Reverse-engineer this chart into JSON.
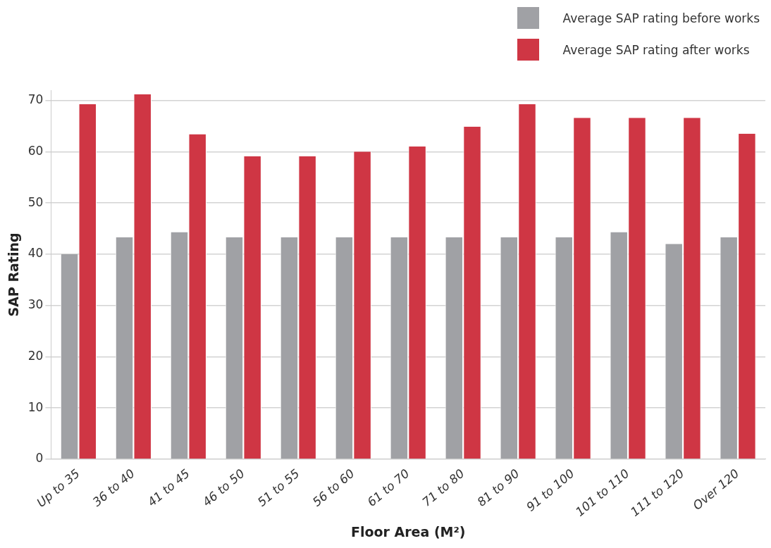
{
  "chart_data": {
    "type": "bar",
    "xlabel": "Floor Area (M²)",
    "ylabel": "SAP Rating",
    "categories": [
      "Up to 35",
      "36 to 40",
      "41 to 45",
      "46 to 50",
      "51 to 55",
      "56 to 60",
      "61 to 70",
      "71 to 80",
      "81 to 90",
      "91 to 100",
      "101 to 110",
      "111 to 120",
      "Over 120"
    ],
    "series": [
      {
        "name": "Average SAP rating before works",
        "color": "#a0a1a5",
        "values": [
          40,
          43.3,
          44.3,
          43.3,
          43.3,
          43.3,
          43.3,
          43.3,
          43.3,
          43.3,
          44.3,
          42,
          43.3
        ]
      },
      {
        "name": "Average SAP rating after works",
        "color": "#cf3644",
        "values": [
          69.3,
          71.2,
          63.4,
          59.1,
          59.1,
          60,
          61,
          64.9,
          69.3,
          66.6,
          66.6,
          66.6,
          63.5
        ]
      }
    ],
    "ylim": [
      0,
      72
    ],
    "yticks": [
      0,
      10,
      20,
      30,
      40,
      50,
      60,
      70
    ],
    "grid": "y",
    "legend": "top right"
  }
}
